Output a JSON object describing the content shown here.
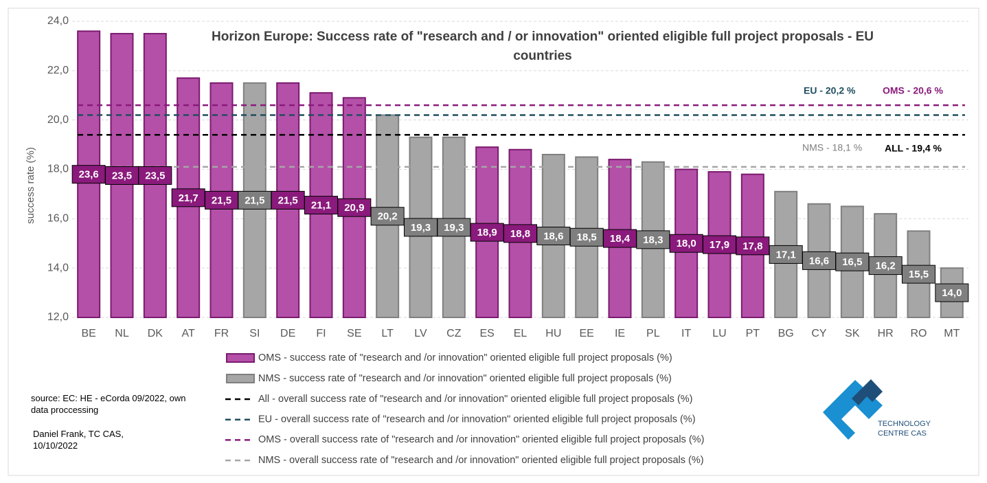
{
  "chart_data": {
    "type": "bar",
    "title": "Horizon Europe: Success rate of \"research and / or innovation\" oriented eligible full project proposals - EU countries",
    "y_label": "success rate (%)",
    "categories": [
      "BE",
      "NL",
      "DK",
      "AT",
      "FR",
      "SI",
      "DE",
      "FI",
      "SE",
      "LT",
      "LV",
      "CZ",
      "ES",
      "EL",
      "HU",
      "EE",
      "IE",
      "PL",
      "IT",
      "LU",
      "PT",
      "BG",
      "CY",
      "SK",
      "HR",
      "RO",
      "MT"
    ],
    "series": [
      {
        "name": "OMS - success rate of \"research and /or innovation\" oriented eligible full project proposals (%)",
        "color": "#b450a8",
        "edge": "#7a1a6e",
        "label_color": "#8a1a7b",
        "values": [
          23.6,
          23.5,
          23.5,
          21.7,
          21.5,
          null,
          21.5,
          21.1,
          20.9,
          null,
          null,
          null,
          18.9,
          18.8,
          null,
          null,
          18.4,
          null,
          18.0,
          17.9,
          17.8,
          null,
          null,
          null,
          null,
          null,
          null
        ],
        "value_labels": [
          "23,6",
          "23,5",
          "23,5",
          "21,7",
          "21,5",
          null,
          "21,5",
          "21,1",
          "20,9",
          null,
          null,
          null,
          "18,9",
          "18,8",
          null,
          null,
          "18,4",
          null,
          "18,0",
          "17,9",
          "17,8",
          null,
          null,
          null,
          null,
          null,
          null
        ]
      },
      {
        "name": "NMS - success rate of \"research and /or innovation\" oriented eligible full project proposals (%)",
        "color": "#a6a6a6",
        "edge": "#7f7f7f",
        "label_color": "#7f7f7f",
        "values": [
          null,
          null,
          null,
          null,
          null,
          21.5,
          null,
          null,
          null,
          20.2,
          19.3,
          19.3,
          null,
          null,
          18.6,
          18.5,
          null,
          18.3,
          null,
          null,
          null,
          17.1,
          16.6,
          16.5,
          16.2,
          15.5,
          14.0
        ],
        "value_labels": [
          null,
          null,
          null,
          null,
          null,
          "21,5",
          null,
          null,
          null,
          "20,2",
          "19,3",
          "19,3",
          null,
          null,
          "18,6",
          "18,5",
          null,
          "18,3",
          null,
          null,
          null,
          "17,1",
          "16,6",
          "16,5",
          "16,2",
          "15,5",
          "14,0"
        ]
      }
    ],
    "reference_lines": [
      {
        "name": "All - overall success rate of \"research and /or innovation\" oriented eligible full project proposals (%)",
        "value": 19.4,
        "label": "ALL - 19,4 %",
        "color": "#000000"
      },
      {
        "name": "EU - overall success rate of  \"research and /or innovation\" oriented eligible full project proposals (%)",
        "value": 20.2,
        "label": "EU - 20,2 %",
        "color": "#1f4e5f"
      },
      {
        "name": "OMS - overall success rate of \"research and /or innovation\" oriented eligible full project proposals (%)",
        "value": 20.6,
        "label": "OMS - 20,6 %",
        "color": "#8a1a7b"
      },
      {
        "name": "NMS - overall success rate of \"research and /or innovation\" oriented eligible full project proposals (%)",
        "value": 18.1,
        "label": "NMS - 18,1 %",
        "color": "#a6a6a6"
      }
    ],
    "ylim": [
      12,
      24
    ],
    "yticks": [
      {
        "value": 12,
        "label": "12,0"
      },
      {
        "value": 14,
        "label": "14,0"
      },
      {
        "value": 16,
        "label": "16,0"
      },
      {
        "value": 18,
        "label": "18,0"
      },
      {
        "value": 20,
        "label": "20,0"
      },
      {
        "value": 22,
        "label": "22,0"
      },
      {
        "value": 24,
        "label": "24,0"
      }
    ],
    "grid": true,
    "source": "source: EC:  HE - eCorda 09/2022, own data proccessing",
    "author": "Daniel Frank, TC CAS, 10/10/2022",
    "logo_text": [
      "TECHNOLOGY",
      "CENTRE CAS"
    ]
  }
}
